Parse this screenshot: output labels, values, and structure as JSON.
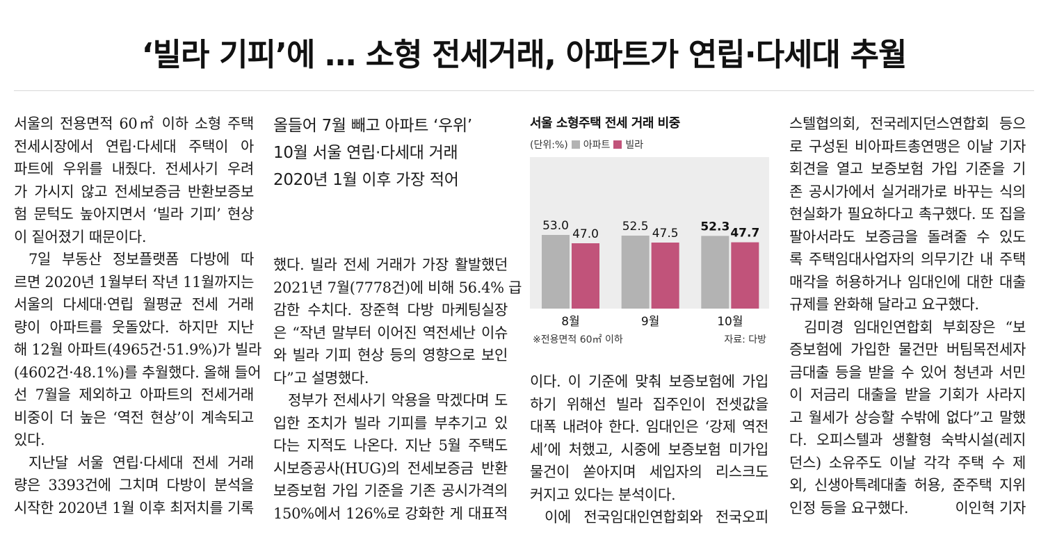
{
  "headline": "‘빌라 기피’에 … 소형 전세거래, 아파트가 연립·다세대 추월",
  "col1": [
    {
      "t": "서울의 전용면적 60㎡ 이하 소형 주택"
    },
    {
      "t": "전세시장에서 연립·다세대 주택이 아"
    },
    {
      "t": "파트에 우위를 내줬다. 전세사기 우려"
    },
    {
      "t": "가 가시지 않고 전세보증금 반환보증보"
    },
    {
      "t": "험 문턱도 높아지면서 ‘빌라 기피’ 현상"
    },
    {
      "t": "이 짙어졌기 때문이다.",
      "last": true
    },
    {
      "t": "7일 부동산 정보플랫폼 다방에 따",
      "ind": true
    },
    {
      "t": "르면 2020년 1월부터 작년 11월까지는"
    },
    {
      "t": "서울의 다세대·연립 월평균 전세 거래"
    },
    {
      "t": "량이 아파트를 웃돌았다. 하지만 지난"
    },
    {
      "t": "해 12월 아파트(4965건·51.9%)가 빌라"
    },
    {
      "t": "(4602건·48.1%)를 추월했다. 올해 들어"
    },
    {
      "t": "선 7월을 제외하고 아파트의 전세거래"
    },
    {
      "t": "비중이 더 높은 ‘역전 현상’이 계속되고"
    },
    {
      "t": "있다.",
      "last": true
    },
    {
      "t": "지난달 서울 연립·다세대 전세 거래",
      "ind": true
    },
    {
      "t": "량은 3393건에 그치며 다방이 분석을"
    },
    {
      "t": "시작한 2020년 1월 이후 최저치를 기록"
    }
  ],
  "subheads": [
    "올들어 7월 빼고 아파트 ‘우위’",
    "10월 서울 연립·다세대 거래",
    "2020년 1월 이후 가장 적어"
  ],
  "col2": [
    {
      "t": "했다. 빌라 전세 거래가 가장 활발했던"
    },
    {
      "t": "2021년 7월(7778건)에 비해 56.4% 급"
    },
    {
      "t": "감한 수치다. 장준혁 다방 마케팅실장"
    },
    {
      "t": "은 “작년 말부터 이어진 역전세난 이슈"
    },
    {
      "t": "와 빌라 기피 현상 등의 영향으로 보인"
    },
    {
      "t": "다”고 설명했다.",
      "last": true
    },
    {
      "t": "정부가 전세사기 악용을 막겠다며 도",
      "ind": true
    },
    {
      "t": "입한 조치가 빌라 기피를 부추기고 있"
    },
    {
      "t": "다는 지적도 나온다. 지난 5월 주택도"
    },
    {
      "t": "시보증공사(HUG)의 전세보증금 반환"
    },
    {
      "t": "보증보험 가입 기준을 기존 공시가격의"
    },
    {
      "t": "150%에서 126%로 강화한 게 대표적"
    }
  ],
  "col3": [
    {
      "t": "이다. 이 기준에 맞춰 보증보험에 가입"
    },
    {
      "t": "하기 위해선 빌라 집주인이 전셋값을"
    },
    {
      "t": "대폭 내려야 한다. 임대인은 ‘강제 역전"
    },
    {
      "t": "세’에 처했고, 시중에 보증보험 미가입"
    },
    {
      "t": "물건이 쏟아지며 세입자의 리스크도"
    },
    {
      "t": "커지고 있다는 분석이다.",
      "last": true
    },
    {
      "t": "이에 전국임대인연합회와 전국오피",
      "ind": true
    }
  ],
  "col4": [
    {
      "t": "스텔협의회, 전국레지던스연합회 등으"
    },
    {
      "t": "로 구성된 비아파트총연맹은 이날 기자"
    },
    {
      "t": "회견을 열고 보증보험 가입 기준을 기"
    },
    {
      "t": "존 공시가에서 실거래가로 바꾸는 식의"
    },
    {
      "t": "현실화가 필요하다고 촉구했다. 또 집을"
    },
    {
      "t": "팔아서라도 보증금을 돌려줄 수 있도"
    },
    {
      "t": "록 주택임대사업자의 의무기간 내 주택"
    },
    {
      "t": "매각을 허용하거나 임대인에 대한 대출"
    },
    {
      "t": "규제를 완화해 달라고 요구했다.",
      "last": true
    },
    {
      "t": "김미경 임대인연합회 부회장은 “보",
      "ind": true
    },
    {
      "t": "증보험에 가입한 물건만 버팀목전세자"
    },
    {
      "t": "금대출 등을 받을 수 있어 청년과 서민"
    },
    {
      "t": "이 저금리 대출을 받을 기회가 사라지"
    },
    {
      "t": "고 월세가 상승할 수밖에 없다”고 말했"
    },
    {
      "t": "다. 오피스텔과 생활형 숙박시설(레지"
    },
    {
      "t": "던스) 소유주도 이날 각각 주택 수 제"
    },
    {
      "t": "외, 신생아특례대출 허용, 준주택 지위"
    },
    {
      "t": "인정 등을 요구했다.",
      "last": true
    }
  ],
  "byline": "이인혁 기자",
  "colors": {
    "apartment": "#b3b3b3",
    "villa": "#c1537a",
    "panel": "#ededed"
  },
  "chart_data": {
    "type": "bar",
    "title": "서울 소형주택 전세 거래 비중",
    "unit_label": "(단위:%)",
    "categories": [
      "8월",
      "9월",
      "10월"
    ],
    "series": [
      {
        "name": "아파트",
        "values": [
          53.0,
          52.5,
          52.3
        ],
        "labels": [
          "53.0",
          "52.5",
          "52.3"
        ]
      },
      {
        "name": "빌라",
        "values": [
          47.0,
          47.5,
          47.7
        ],
        "labels": [
          "47.0",
          "47.5",
          "47.7"
        ]
      }
    ],
    "note": "※전용면적 60㎡ 이하",
    "source": "자료: 다방",
    "legend_position": "top-left",
    "grid": false
  }
}
